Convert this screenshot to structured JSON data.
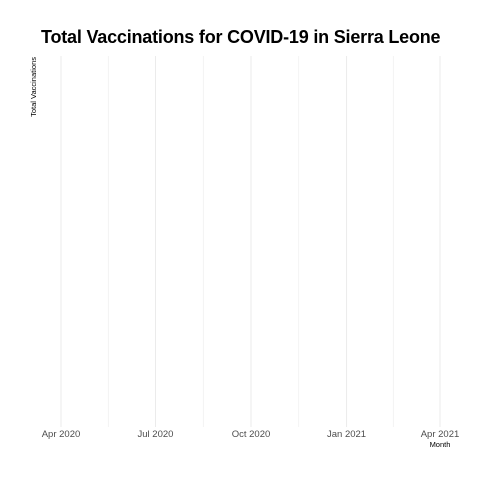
{
  "chart_data": {
    "type": "line",
    "title": "Total Vaccinations for COVID-19 in Sierra Leone",
    "xlabel": "Month",
    "ylabel": "Total Vaccinations",
    "x_ticks": [
      "Apr 2020",
      "Jul 2020",
      "Oct 2020",
      "Jan 2021",
      "Apr 2021"
    ],
    "x_tick_dates": [
      "2020-04-01",
      "2020-07-01",
      "2020-10-01",
      "2021-01-01",
      "2021-04-01"
    ],
    "xlim": [
      "2020-03-01",
      "2021-04-01"
    ],
    "series": [],
    "grid": true,
    "colors": {
      "grid": "#ebebeb",
      "tick_text": "#4d4d4d",
      "title": "#000000"
    }
  }
}
